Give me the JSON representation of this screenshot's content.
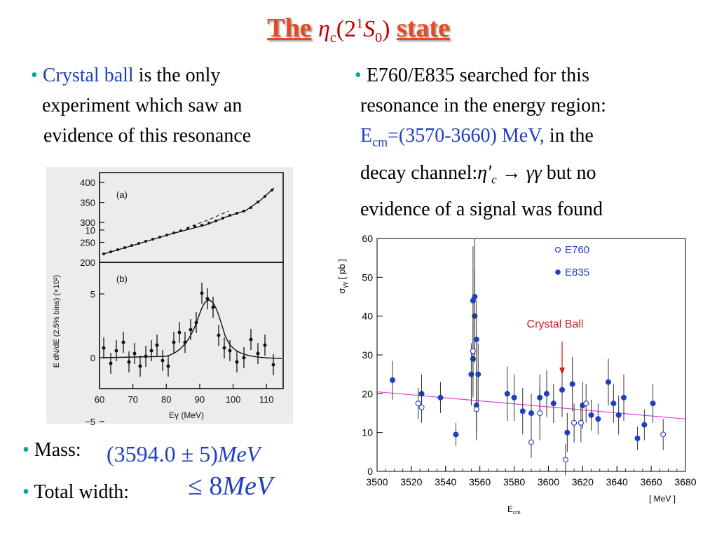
{
  "title": {
    "prefix": "The",
    "symbol": "η",
    "symbol_sub": "c",
    "paren_open": "(2",
    "sup": "1",
    "letter": "S",
    "letter_sub": "0",
    "paren_close": ")",
    "suffix": "state"
  },
  "left_bullet": {
    "highlight": "Crystal ball",
    "line1": " is the only",
    "line2": "experiment which saw an",
    "line3": "evidence of this resonance"
  },
  "right_bullet": {
    "line1": "E760/E835 searched for this",
    "line2": "resonance in the energy region:",
    "ecm": "E",
    "ecm_sub": "cm",
    "ecm_value": "=(3570-3660) MeV,",
    "line3_tail": " in the",
    "line4_lead": "decay channel:",
    "channel_eta": "η′",
    "channel_sub": "c",
    "channel_rest": " → γγ",
    "line4_tail": " but no",
    "line5": "evidence of a signal was found"
  },
  "mass": {
    "label": "Mass:",
    "value": "(3594.0 ± 5)",
    "unit": "MeV"
  },
  "width": {
    "label": "Total width:",
    "value": "≤ 8",
    "unit": "MeV"
  },
  "left_figure": {
    "panel_a_label": "(a)",
    "panel_b_label": "(b)",
    "ylabel": "E dN/dE (2.5% bins) (×10²)",
    "xlabel": "Eγ    (MeV)",
    "top_ticks": [
      "200",
      "250",
      "300",
      "350",
      "400"
    ],
    "bottom_ticks": [
      "−5",
      "0",
      "5",
      "10"
    ],
    "x_ticks": [
      "60",
      "70",
      "80",
      "90",
      "100",
      "110"
    ]
  },
  "chart_data": {
    "type": "scatter",
    "xlabel": "E",
    "xlabel_sub": "cm",
    "xunit": "[ MeV ]",
    "ylabel": "σ",
    "ylabel_sub": "γγ",
    "yunit": "[ pb ]",
    "xlim": [
      3500,
      3680
    ],
    "ylim": [
      0,
      60
    ],
    "x_ticks": [
      "3500",
      "3520",
      "3540",
      "3560",
      "3580",
      "3600",
      "3620",
      "3640",
      "3660",
      "3680"
    ],
    "y_ticks": [
      "0",
      "10",
      "20",
      "30",
      "40",
      "50",
      "60"
    ],
    "legend": [
      {
        "name": "E760",
        "marker": "open"
      },
      {
        "name": "E835",
        "marker": "filled"
      }
    ],
    "annotation": {
      "text": "Crystal Ball",
      "x": 3608,
      "color": "#d02020"
    },
    "fit_line": {
      "x": [
        3500,
        3680
      ],
      "y": [
        20.5,
        13.5
      ],
      "color": "#e040e0"
    },
    "series": [
      {
        "name": "E835",
        "points": [
          [
            3509,
            23.5,
            5
          ],
          [
            3526,
            20,
            5
          ],
          [
            3537,
            19,
            4
          ],
          [
            3546,
            9.5,
            3
          ],
          [
            3555,
            25,
            8
          ],
          [
            3556,
            29,
            9
          ],
          [
            3556,
            44,
            14
          ],
          [
            3557,
            40,
            12
          ],
          [
            3557,
            45,
            15
          ],
          [
            3558,
            34,
            10
          ],
          [
            3558,
            17,
            7
          ],
          [
            3559,
            25,
            8
          ],
          [
            3576,
            20,
            7
          ],
          [
            3580,
            19,
            6
          ],
          [
            3585,
            15.5,
            6
          ],
          [
            3590,
            15,
            5
          ],
          [
            3595,
            19,
            6
          ],
          [
            3599,
            20,
            6
          ],
          [
            3603,
            17.5,
            5
          ],
          [
            3608,
            21,
            7
          ],
          [
            3611,
            10,
            5
          ],
          [
            3614,
            22.5,
            7
          ],
          [
            3620,
            17,
            6
          ],
          [
            3625,
            14.5,
            4
          ],
          [
            3629,
            13.5,
            4
          ],
          [
            3635,
            23,
            6
          ],
          [
            3638,
            17.5,
            5
          ],
          [
            3641,
            14.5,
            5
          ],
          [
            3644,
            19,
            6
          ],
          [
            3652,
            8.5,
            3
          ],
          [
            3656,
            12,
            4
          ],
          [
            3661,
            17.5,
            5
          ]
        ]
      },
      {
        "name": "E760",
        "points": [
          [
            3524,
            17.5,
            4
          ],
          [
            3526,
            16.5,
            4
          ],
          [
            3556,
            31,
            12
          ],
          [
            3558,
            16,
            8
          ],
          [
            3590,
            7.5,
            4
          ],
          [
            3595,
            15,
            7
          ],
          [
            3610,
            3,
            4
          ],
          [
            3615,
            12.5,
            5
          ],
          [
            3619,
            12.5,
            5
          ],
          [
            3622,
            17.5,
            5
          ],
          [
            3667,
            9.5,
            4
          ]
        ]
      }
    ]
  }
}
